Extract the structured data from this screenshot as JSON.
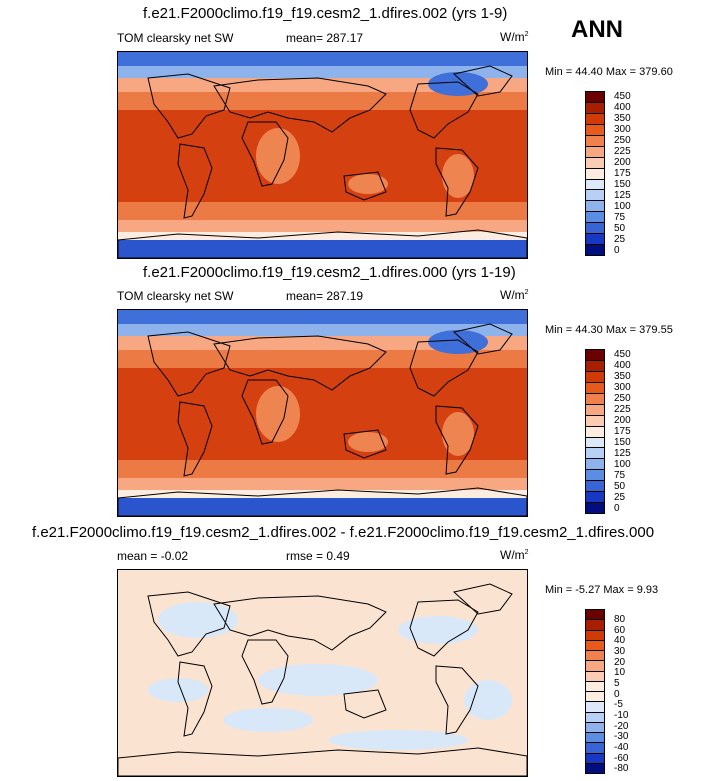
{
  "season": "ANN",
  "panels": [
    {
      "title": "f.e21.F2000climo.f19_f19.cesm2_1.dfires.002 (yrs 1-9)",
      "left_label": "TOM clearsky net SW",
      "mid_label": "mean= 287.17",
      "units": "W/m",
      "units_sup": "2",
      "minmax": "Min =  44.40 Max = 379.60",
      "levels": [
        "450",
        "400",
        "350",
        "300",
        "250",
        "225",
        "200",
        "175",
        "150",
        "125",
        "100",
        "75",
        "50",
        "25",
        "0"
      ],
      "colors": [
        "#6b0000",
        "#a81e00",
        "#d03a06",
        "#e85a1c",
        "#f0804c",
        "#f7a781",
        "#fbccb2",
        "#fdece0",
        "#dce9f9",
        "#b8d0f3",
        "#8db2ec",
        "#5b8de2",
        "#3865d6",
        "#1838c2",
        "#000e80"
      ]
    },
    {
      "title": "f.e21.F2000climo.f19_f19.cesm2_1.dfires.000 (yrs 1-19)",
      "left_label": "TOM clearsky net SW",
      "mid_label": "mean= 287.19",
      "units": "W/m",
      "units_sup": "2",
      "minmax": "Min =  44.30 Max = 379.55",
      "levels": [
        "450",
        "400",
        "350",
        "300",
        "250",
        "225",
        "200",
        "175",
        "150",
        "125",
        "100",
        "75",
        "50",
        "25",
        "0"
      ],
      "colors": [
        "#6b0000",
        "#a81e00",
        "#d03a06",
        "#e85a1c",
        "#f0804c",
        "#f7a781",
        "#fbccb2",
        "#fdece0",
        "#dce9f9",
        "#b8d0f3",
        "#8db2ec",
        "#5b8de2",
        "#3865d6",
        "#1838c2",
        "#000e80"
      ]
    },
    {
      "title": "f.e21.F2000climo.f19_f19.cesm2_1.dfires.002 - f.e21.F2000climo.f19_f19.cesm2_1.dfires.000",
      "left_label": "mean =  -0.02",
      "mid_label": "rmse =   0.49",
      "units": "W/m",
      "units_sup": "2",
      "minmax": "Min =  -5.27 Max =   9.93",
      "levels": [
        "80",
        "60",
        "40",
        "30",
        "20",
        "10",
        "5",
        "0",
        "-5",
        "-10",
        "-20",
        "-30",
        "-40",
        "-60",
        "-80"
      ],
      "colors": [
        "#6b0000",
        "#a81e00",
        "#d03a06",
        "#e85a1c",
        "#f0804c",
        "#f7a781",
        "#fbccb2",
        "#fdece0",
        "#fdece0",
        "#dce9f9",
        "#b8d0f3",
        "#8db2ec",
        "#5b8de2",
        "#3865d6",
        "#1838c2",
        "#000e80"
      ]
    }
  ],
  "colors": {
    "ocean_tropics": "#d44010",
    "ocean_mid": "#ec7a44",
    "ocean_high": "#4d7fde",
    "land_tropics": "#ee8450",
    "sea_ice_arctic": "#3f6fd8",
    "sea_ice_antarctic": "#2b55cc",
    "diff_base": "#fbe3d2",
    "diff_neg": "#d8e8f8"
  }
}
